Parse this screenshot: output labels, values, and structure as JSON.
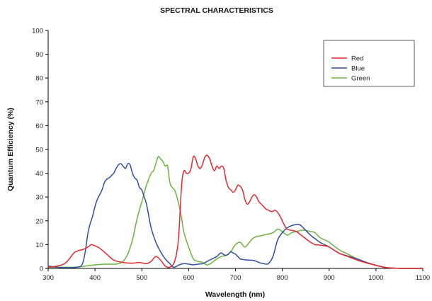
{
  "chart_data": {
    "type": "line",
    "title": "SPECTRAL CHARACTERISTICS",
    "xlabel": "Wavelength (nm)",
    "ylabel": "Quantum Efficiency (%)",
    "xlim": [
      300,
      1100
    ],
    "ylim": [
      0,
      100
    ],
    "xticks": [
      "300",
      "400",
      "500",
      "600",
      "700",
      "800",
      "900",
      "1000",
      "1100"
    ],
    "yticks": [
      "0",
      "10",
      "20",
      "30",
      "40",
      "50",
      "60",
      "70",
      "80",
      "90",
      "100"
    ],
    "grid": false,
    "legend_position": "top-right",
    "colors": {
      "Red": "#e8262d",
      "Blue": "#2e4fa3",
      "Green": "#6ab43e"
    },
    "series": [
      {
        "name": "Red",
        "x": [
          300,
          320,
          335,
          345,
          355,
          365,
          375,
          385,
          392,
          400,
          410,
          425,
          440,
          460,
          480,
          495,
          510,
          520,
          530,
          540,
          550,
          560,
          570,
          578,
          585,
          590,
          595,
          600,
          605,
          610,
          615,
          620,
          625,
          630,
          635,
          640,
          645,
          650,
          655,
          660,
          665,
          670,
          675,
          680,
          685,
          690,
          695,
          700,
          705,
          710,
          715,
          720,
          725,
          730,
          735,
          740,
          745,
          750,
          755,
          760,
          765,
          770,
          775,
          780,
          785,
          790,
          795,
          800,
          805,
          810,
          820,
          830,
          840,
          850,
          860,
          870,
          880,
          890,
          900,
          920,
          940,
          960,
          980,
          1000,
          1020,
          1040,
          1060,
          1080,
          1100
        ],
        "y": [
          0.5,
          1,
          2,
          4,
          6.5,
          7.5,
          8,
          9,
          10,
          9.5,
          8.5,
          6,
          3.5,
          2.5,
          2.2,
          2.5,
          2,
          3,
          5,
          3.5,
          1,
          0.5,
          3,
          12,
          35,
          41,
          40,
          40,
          42,
          47,
          46,
          43,
          42,
          44,
          47,
          47.5,
          46,
          43,
          41,
          43,
          42,
          43,
          42,
          37,
          34,
          33,
          32,
          33,
          35,
          34.5,
          33,
          29,
          27,
          28,
          30,
          31,
          30,
          28,
          27,
          26,
          25,
          24.5,
          24,
          24,
          24.5,
          23.5,
          22,
          20,
          18,
          16.5,
          16,
          15.5,
          14,
          12.5,
          11,
          10,
          9.8,
          9.5,
          9,
          6.5,
          5,
          3.5,
          2.3,
          1.3,
          0.4,
          0.1,
          0,
          0,
          0
        ]
      },
      {
        "name": "Blue",
        "x": [
          300,
          320,
          340,
          360,
          370,
          375,
          380,
          385,
          390,
          395,
          400,
          405,
          410,
          415,
          420,
          425,
          430,
          435,
          440,
          445,
          450,
          455,
          460,
          465,
          470,
          475,
          480,
          485,
          490,
          495,
          500,
          505,
          510,
          520,
          530,
          540,
          550,
          560,
          565,
          570,
          580,
          590,
          600,
          610,
          620,
          630,
          640,
          650,
          660,
          665,
          670,
          675,
          680,
          685,
          690,
          695,
          700,
          705,
          710,
          715,
          720,
          730,
          740,
          750,
          760,
          770,
          780,
          790,
          800,
          810,
          820,
          830,
          835,
          840,
          845,
          850,
          860,
          870,
          880,
          890,
          900,
          920,
          940,
          960,
          980,
          1000,
          1020,
          1040,
          1060,
          1080,
          1100
        ],
        "y": [
          1,
          0.5,
          0.3,
          0.5,
          1,
          3,
          8,
          15,
          19,
          22,
          26,
          29,
          31,
          33,
          36,
          37.5,
          38,
          39,
          40,
          42,
          43.5,
          44,
          43,
          42,
          44,
          43.5,
          40,
          38,
          37,
          34,
          33,
          30,
          27,
          17,
          11,
          7,
          4,
          2,
          0.8,
          0.5,
          1.5,
          2,
          1.8,
          1.5,
          1.8,
          2,
          3,
          4,
          5,
          6,
          6.5,
          5.8,
          5.5,
          6,
          7,
          6.5,
          6,
          5,
          4,
          3.8,
          3.6,
          3.5,
          3.3,
          2.5,
          2,
          2,
          5,
          12,
          15,
          17,
          18,
          18.5,
          18.5,
          18,
          17,
          16,
          14,
          12.5,
          11,
          10,
          9,
          6.5,
          5.2,
          4,
          2.5,
          1.3,
          0.4,
          0.1,
          0,
          0,
          0
        ]
      },
      {
        "name": "Green",
        "x": [
          300,
          320,
          340,
          360,
          380,
          400,
          420,
          440,
          450,
          460,
          470,
          480,
          490,
          500,
          510,
          520,
          525,
          530,
          535,
          540,
          545,
          550,
          555,
          560,
          565,
          570,
          575,
          580,
          585,
          590,
          600,
          610,
          620,
          630,
          640,
          650,
          660,
          670,
          680,
          690,
          700,
          710,
          720,
          730,
          740,
          760,
          780,
          790,
          800,
          810,
          820,
          830,
          840,
          850,
          860,
          870,
          880,
          890,
          900,
          920,
          940,
          960,
          980,
          1000,
          1020,
          1040,
          1060,
          1080,
          1100
        ],
        "y": [
          0.5,
          0.5,
          0.5,
          0.5,
          1,
          1.5,
          1.8,
          1.8,
          2,
          3,
          6,
          12,
          21,
          28,
          35,
          40,
          41,
          44,
          47,
          46,
          45,
          43,
          43,
          36,
          34,
          33,
          30,
          26,
          21,
          15,
          9,
          4,
          3,
          2.5,
          1.5,
          2.5,
          4,
          5,
          5.5,
          7,
          10,
          11,
          9,
          11,
          13,
          14,
          15,
          16.5,
          15.5,
          14,
          15,
          15.5,
          16,
          16,
          15.5,
          15,
          13,
          12,
          11,
          8,
          6,
          4,
          2.5,
          1.3,
          0.4,
          0.1,
          0,
          0,
          0
        ]
      }
    ]
  }
}
